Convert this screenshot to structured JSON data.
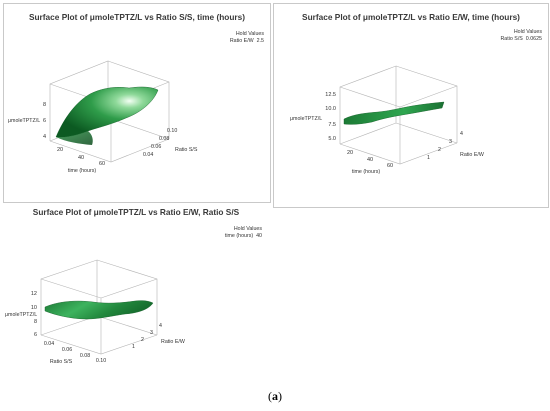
{
  "chart_data": [
    {
      "type": "surface",
      "title": "Surface Plot of μmoleTPTZ/L vs Ratio S/S, time (hours)",
      "hold_title": "Hold Values",
      "hold_var": "Ratio E/W",
      "hold_val": "2.5",
      "zlabel": "μmoleTPTZ/L",
      "xlabel": "time (hours)",
      "ylabel": "Ratio S/S",
      "z_ticks": [
        "8",
        "6",
        "4"
      ],
      "x_ticks": [
        "20",
        "40",
        "60"
      ],
      "y_ticks": [
        "0.10",
        "0.08",
        "0.06",
        "0.04"
      ],
      "surface_color": "#1f8a3c"
    },
    {
      "type": "surface",
      "title": "Surface Plot of μmoleTPTZ/L vs Ratio E/W, time (hours)",
      "hold_title": "Hold Values",
      "hold_var": "Ratio S/S",
      "hold_val": "0.0625",
      "zlabel": "μmoleTPTZ/L",
      "xlabel": "time (hours)",
      "ylabel": "Ratio E/W",
      "z_ticks": [
        "12.5",
        "10.0",
        "7.5",
        "5.0"
      ],
      "x_ticks": [
        "20",
        "40",
        "60"
      ],
      "y_ticks": [
        "4",
        "3",
        "2",
        "1"
      ],
      "surface_color": "#1f8a3c"
    },
    {
      "type": "surface",
      "title": "Surface Plot of μmoleTPTZ/L vs Ratio E/W, Ratio S/S",
      "hold_title": "Hold Values",
      "hold_var": "time (hours)",
      "hold_val": "40",
      "zlabel": "μmoleTPTZ/L",
      "xlabel": "Ratio S/S",
      "ylabel": "Ratio E/W",
      "z_ticks": [
        "12",
        "10",
        "8",
        "6"
      ],
      "x_ticks": [
        "0.04",
        "0.06",
        "0.08",
        "0.10"
      ],
      "y_ticks": [
        "4",
        "3",
        "2",
        "1"
      ],
      "surface_color": "#1f8a3c"
    }
  ],
  "figure_caption": {
    "open": "(",
    "label": "a",
    "close": ")"
  }
}
